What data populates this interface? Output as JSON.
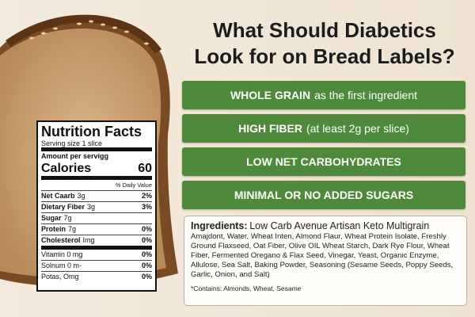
{
  "title": [
    "What Should Diabetics",
    "Look for on Bread Labels?"
  ],
  "tips": [
    {
      "emphasis": "WHOLE GRAIN",
      "text": "as the first ingredient"
    },
    {
      "emphasis": "HIGH FIBER",
      "text": "(at least 2g per slice)"
    },
    {
      "emphasis": "LOW NET CARBOHYDRATES"
    },
    {
      "emphasis": "MINIMAL OR NO ADDED SUGARS"
    }
  ],
  "ingredients": {
    "heading": "Ingredients:",
    "product": "Low Carb Avenue Artisan Keto Multigrain",
    "body": "Amajdont, Water, Wheat Inten, Almond Flaur, Wheat Protein Isolate, Freshly Ground Flaxseed, Oat Fiber, Olive OIL Wheat Starch, Dark Rye Flour, Wheat Fiber, Fermented Oregano & Flax Seed, Vinegar, Yeast, Organic Enzyme, Allulose, Sea Salt, Baking Powder, Seasoning (Sesame Seeds, Poppy Seeds, Garlic, Onion, and Salt)",
    "note": "*Contains: Almonds, Wheat, Sesame"
  },
  "nutrition": {
    "title": "Nutrition Facts",
    "serving": "Serving size  1 slice",
    "amount_label": "Amount per servigg",
    "calories_label": "Calories",
    "calories": "60",
    "dv_header": "% Daily Value",
    "rows": [
      {
        "name": "Net Caarb",
        "amount": "3g",
        "dv": "2%"
      },
      {
        "name": "Dietary Fiber",
        "amount": "3g",
        "dv": "3%"
      },
      {
        "name": "Sugar",
        "amount": "7g"
      },
      {
        "name": "Protein",
        "amount": "7g",
        "dv": "0%"
      },
      {
        "name": "Cholesterol",
        "amount": "Img",
        "dv": "0%"
      }
    ],
    "minerals": [
      {
        "name": "Vitamin 0 mg",
        "dv": "0%"
      },
      {
        "name": "Solnum 0 m-",
        "dv": "0%"
      },
      {
        "name": "Potas, Omg",
        "dv": "0%"
      }
    ]
  }
}
